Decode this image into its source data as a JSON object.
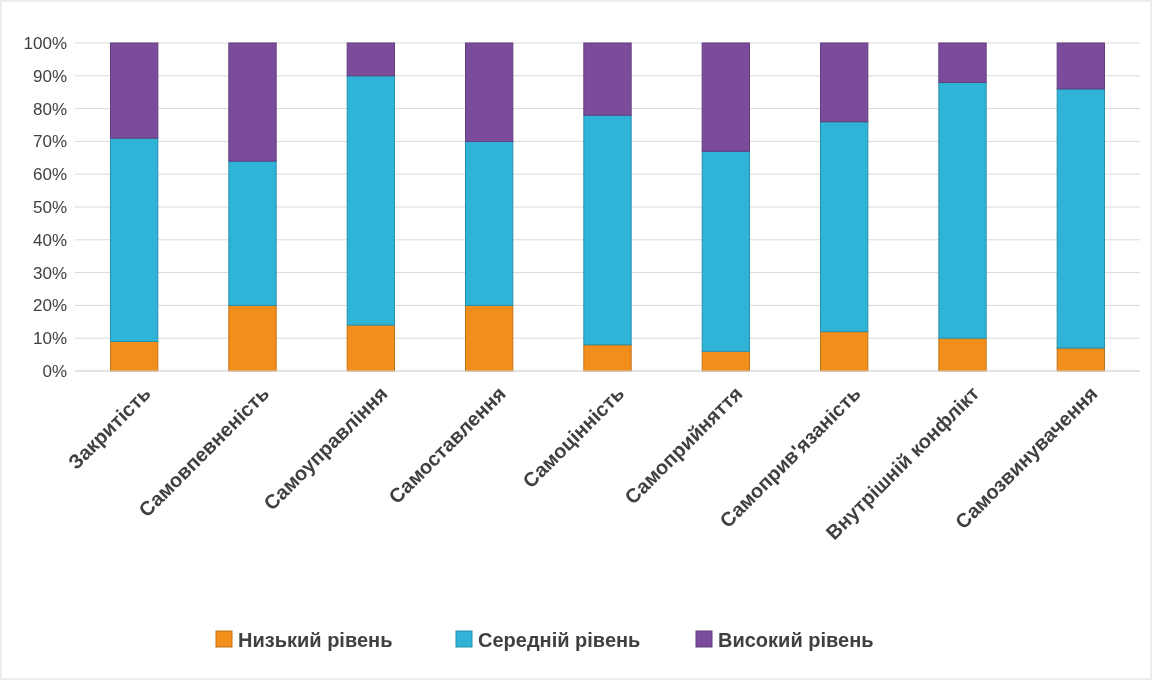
{
  "chart_data": {
    "type": "bar",
    "stacked": true,
    "categories": [
      "Закритість",
      "Самовпевненість",
      "Самоуправління",
      "Самоставлення",
      "Самоцінність",
      "Самоприйняття",
      "Самоприв'язаність",
      "Внутрішній конфлікт",
      "Самозвинувачення"
    ],
    "series": [
      {
        "name": "Низький рівень",
        "color": "#f28e1c",
        "values": [
          9,
          20,
          14,
          20,
          8,
          6,
          12,
          10,
          7
        ]
      },
      {
        "name": "Середній рівень",
        "color": "#2fb3d6",
        "values": [
          62,
          44,
          76,
          50,
          70,
          61,
          64,
          78,
          79
        ]
      },
      {
        "name": "Високий рівень",
        "color": "#7b4c9c",
        "values": [
          29,
          36,
          10,
          30,
          22,
          33,
          24,
          12,
          14
        ]
      }
    ],
    "ylim": [
      0,
      100
    ],
    "yticks": [
      {
        "value": 0,
        "label": "0%"
      },
      {
        "value": 10,
        "label": "10%"
      },
      {
        "value": 20,
        "label": "20%"
      },
      {
        "value": 30,
        "label": "30%"
      },
      {
        "value": 40,
        "label": "40%"
      },
      {
        "value": 50,
        "label": "50%"
      },
      {
        "value": 60,
        "label": "60%"
      },
      {
        "value": 70,
        "label": "70%"
      },
      {
        "value": 80,
        "label": "80%"
      },
      {
        "value": 90,
        "label": "90%"
      },
      {
        "value": 100,
        "label": "100%"
      }
    ],
    "grid": "y",
    "legend": "bottom"
  }
}
